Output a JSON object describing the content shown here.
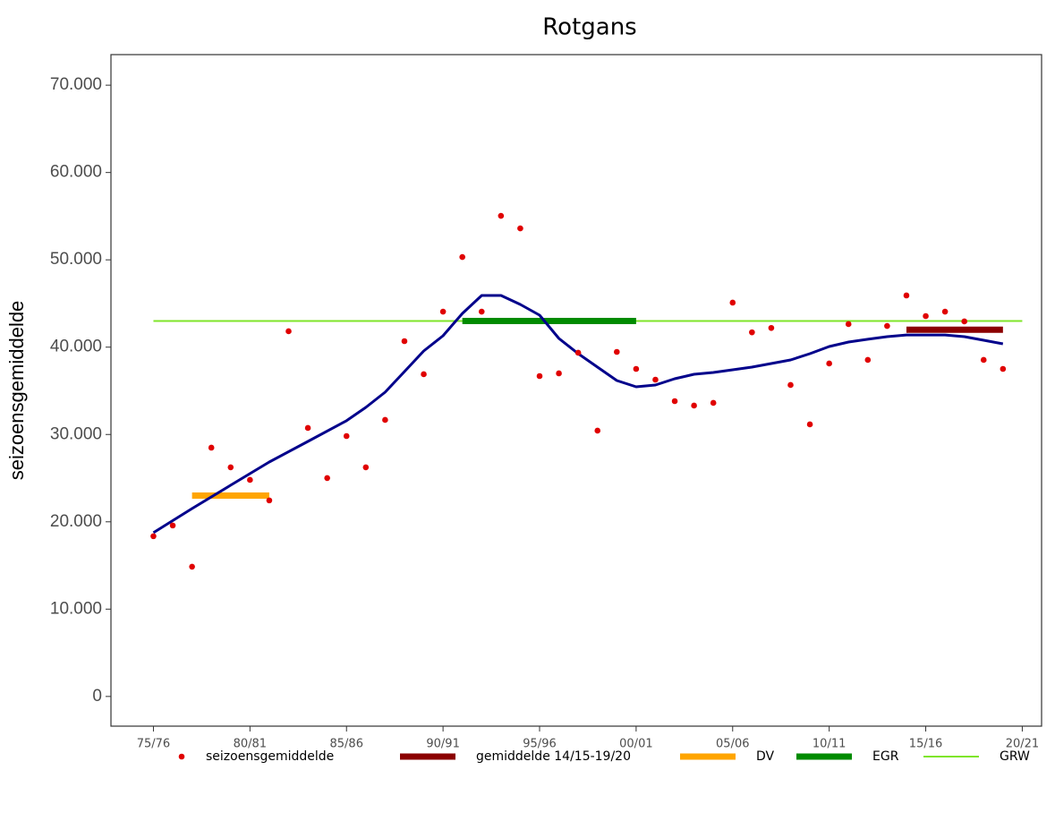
{
  "chart_data": {
    "type": "scatter-smooth",
    "title": "Rotgans",
    "y_label": "seizoensgemiddelde",
    "xlim": [
      1972.8,
      2021
    ],
    "ylim": [
      -3400,
      73500
    ],
    "xticks": [
      {
        "value": 1975,
        "label": "75/76"
      },
      {
        "value": 1980,
        "label": "80/81"
      },
      {
        "value": 1985,
        "label": "85/86"
      },
      {
        "value": 1990,
        "label": "90/91"
      },
      {
        "value": 1995,
        "label": "95/96"
      },
      {
        "value": 2000,
        "label": "00/01"
      },
      {
        "value": 2005,
        "label": "05/06"
      },
      {
        "value": 2010,
        "label": "10/11"
      },
      {
        "value": 2015,
        "label": "15/16"
      },
      {
        "value": 2020,
        "label": "20/21"
      }
    ],
    "yticks": [
      0,
      {
        "value": 10000,
        "label": "10.000"
      },
      {
        "value": 20000,
        "label": "20.000"
      },
      {
        "value": 30000,
        "label": "30.000"
      },
      {
        "value": 40000,
        "label": "40.000"
      },
      {
        "value": 50000,
        "label": "50.000"
      },
      {
        "value": 60000,
        "label": "60.000"
      },
      {
        "value": 70000,
        "label": "70.000"
      }
    ],
    "points": {
      "name": "seizoensgemiddelde",
      "color": "#e00000",
      "x": [
        1975,
        1976,
        1977,
        1978,
        1979,
        1980,
        1981,
        1982,
        1983,
        1984,
        1985,
        1986,
        1987,
        1988,
        1989,
        1990,
        1991,
        1992,
        1993,
        1994,
        1995,
        1996,
        1997,
        1998,
        1999,
        2000,
        2001,
        2002,
        2003,
        2004,
        2005,
        2006,
        2007,
        2008,
        2009,
        2010,
        2011,
        2012,
        2013,
        2014,
        2015,
        2016,
        2017,
        2018,
        2019
      ],
      "values": [
        18350,
        19580,
        14860,
        28490,
        26240,
        24800,
        22450,
        41820,
        30750,
        25010,
        29820,
        26240,
        31670,
        40690,
        36900,
        44070,
        50320,
        44070,
        55040,
        53600,
        36690,
        37000,
        39360,
        30440,
        39460,
        37510,
        36280,
        33820,
        33310,
        33620,
        45100,
        41700,
        42200,
        35670,
        31160,
        38130,
        42640,
        38540,
        42430,
        45920,
        43560,
        44070,
        42950,
        38540,
        37510
      ]
    },
    "smooth": {
      "color": "#00008b",
      "x": [
        1975,
        1977,
        1979,
        1981,
        1983,
        1985,
        1986,
        1987,
        1988,
        1989,
        1990,
        1991,
        1992,
        1993,
        1994,
        1995,
        1996,
        1997,
        1998,
        1999,
        2000,
        2001,
        2002,
        2003,
        2004,
        2005,
        2006,
        2007,
        2008,
        2009,
        2010,
        2011,
        2012,
        2013,
        2014,
        2015,
        2016,
        2017,
        2018,
        2019
      ],
      "values": [
        18760,
        21520,
        24190,
        26850,
        29210,
        31570,
        33100,
        34850,
        37200,
        39560,
        41300,
        43860,
        45920,
        45920,
        44890,
        43660,
        41000,
        39250,
        37720,
        36180,
        35460,
        35670,
        36380,
        36900,
        37100,
        37410,
        37720,
        38130,
        38540,
        39250,
        40070,
        40590,
        40900,
        41200,
        41400,
        41400,
        41400,
        41200,
        40790,
        40380
      ]
    },
    "segments": [
      {
        "name": "gemiddelde 14/15-19/20",
        "color": "#8b0000",
        "x": [
          2014,
          2019
        ],
        "value": 42000
      },
      {
        "name": "DV",
        "color": "#ffa500",
        "x": [
          1977,
          1981
        ],
        "value": 23000
      },
      {
        "name": "EGR",
        "color": "#008b00",
        "x": [
          1991,
          2000
        ],
        "value": 43000
      },
      {
        "name": "GRW",
        "color": "#7fe52a",
        "x": [
          1975,
          2020
        ],
        "value": 43000
      }
    ]
  }
}
